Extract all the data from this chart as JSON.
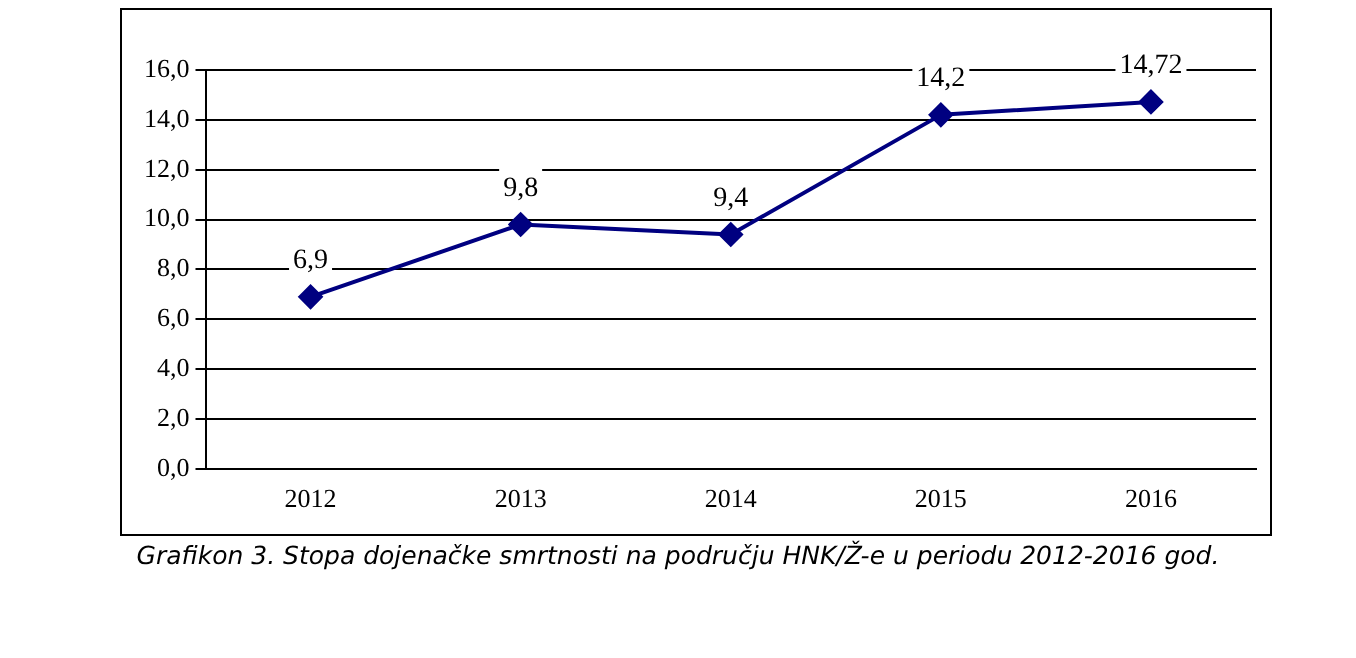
{
  "chart_data": {
    "type": "line",
    "categories": [
      "2012",
      "2013",
      "2014",
      "2015",
      "2016"
    ],
    "series": [
      {
        "color": "#000080",
        "values": [
          6.9,
          9.8,
          9.4,
          14.2,
          14.72
        ],
        "value_labels": [
          "6,9",
          "9,8",
          "9,4",
          "14,2",
          "14,72"
        ]
      }
    ],
    "ylim": [
      0,
      16
    ],
    "yticks": [
      {
        "value": 0,
        "label": "0,0"
      },
      {
        "value": 2,
        "label": "2,0"
      },
      {
        "value": 4,
        "label": "4,0"
      },
      {
        "value": 6,
        "label": "6,0"
      },
      {
        "value": 8,
        "label": "8,0"
      },
      {
        "value": 10,
        "label": "10,0"
      },
      {
        "value": 12,
        "label": "12,0"
      },
      {
        "value": 14,
        "label": "14,0"
      },
      {
        "value": 16,
        "label": "16,0"
      }
    ],
    "grid": "y",
    "marker": "diamond",
    "line_style": "solid",
    "annotations": [
      "Grafikon 3. Stopa dojenačke smrtnosti na području HNK/Ž-e u periodu 2012-2016 god."
    ]
  }
}
